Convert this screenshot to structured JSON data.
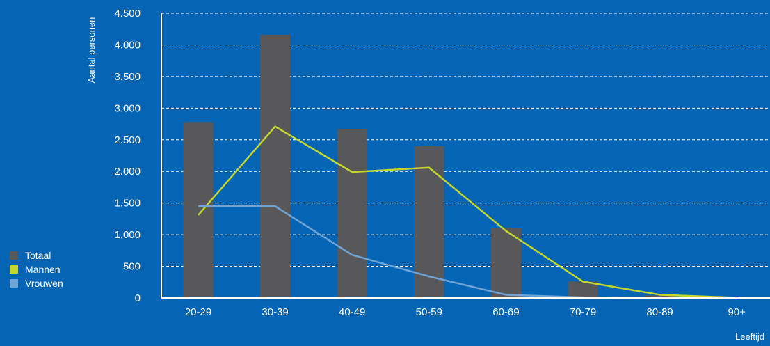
{
  "chart_data": {
    "type": "bar",
    "xlabel": "Leeftijd",
    "ylabel": "Aantal personen",
    "categories": [
      "20-29",
      "30-39",
      "40-49",
      "50-59",
      "60-69",
      "70-79",
      "80-89",
      "90+"
    ],
    "ylim": [
      0,
      4500
    ],
    "yticks": [
      0,
      500,
      1000,
      1500,
      2000,
      2500,
      3000,
      3500,
      4000,
      4500
    ],
    "ytick_labels": [
      "0",
      "500",
      "1.000",
      "1.500",
      "2.000",
      "2.500",
      "3.000",
      "3.500",
      "4.000",
      "4.500"
    ],
    "grid": true,
    "legend_position": "bottom-left",
    "series": [
      {
        "name": "Totaal",
        "type": "bar",
        "color": "#58585a",
        "values": [
          2780,
          4160,
          2670,
          2400,
          1110,
          260,
          40,
          5
        ]
      },
      {
        "name": "Mannen",
        "type": "line",
        "color": "#c3d62e",
        "values": [
          1310,
          2710,
          1990,
          2060,
          1060,
          260,
          50,
          5
        ]
      },
      {
        "name": "Vrouwen",
        "type": "line",
        "color": "#6ea3d6",
        "values": [
          1450,
          1450,
          680,
          340,
          50,
          10,
          0,
          0
        ]
      }
    ]
  }
}
